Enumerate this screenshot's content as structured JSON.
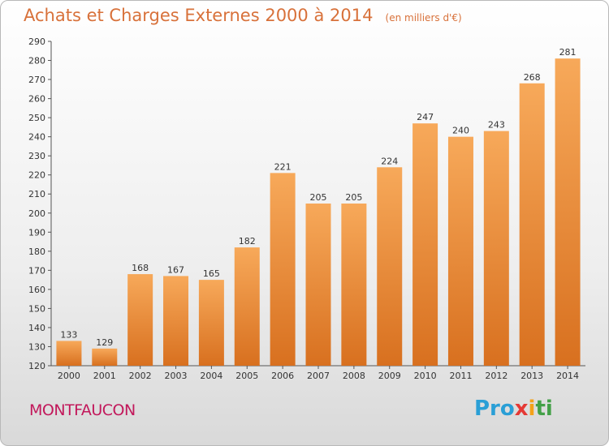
{
  "title": "Achats et Charges Externes 2000 à 2014",
  "unit_note": "(en milliers d'€)",
  "town": "MONTFAUCON",
  "brand": {
    "part1": "Pro",
    "part2": "x",
    "part3": "i",
    "part4": "ti"
  },
  "colors": {
    "bar_top": "#f7a95a",
    "bar_bottom": "#d8701f",
    "title": "#d8713a",
    "town": "#c2185b"
  },
  "chart_data": {
    "type": "bar",
    "categories": [
      "2000",
      "2001",
      "2002",
      "2003",
      "2004",
      "2005",
      "2006",
      "2007",
      "2008",
      "2009",
      "2010",
      "2011",
      "2012",
      "2013",
      "2014"
    ],
    "values": [
      133,
      129,
      168,
      167,
      165,
      182,
      221,
      205,
      205,
      224,
      247,
      240,
      243,
      268,
      281
    ],
    "ylim": [
      120,
      290
    ],
    "yticks": [
      120,
      130,
      140,
      150,
      160,
      170,
      180,
      190,
      200,
      210,
      220,
      230,
      240,
      250,
      260,
      270,
      280,
      290
    ],
    "grid": false,
    "legend": "none"
  }
}
